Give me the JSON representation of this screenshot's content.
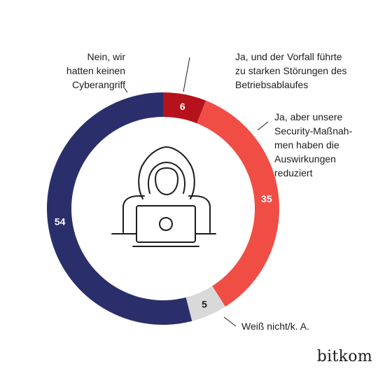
{
  "chart_data": {
    "type": "pie",
    "title": "",
    "slices": [
      {
        "label": "Ja, und der Vorfall führte zu starken Störungen des Betriebsablaufes",
        "value": 6,
        "value_label": "6",
        "color": "#b5121b"
      },
      {
        "label": "Ja, aber unsere Security-Maßnahmen haben die Auswirkungen reduziert",
        "value": 35,
        "value_label": "35",
        "color": "#f04e45"
      },
      {
        "label": "Weiß nicht/k. A.",
        "value": 5,
        "value_label": "5",
        "color": "#d9d9d9"
      },
      {
        "label": "Nein, wir hatten keinen Cyberangriff",
        "value": 54,
        "value_label": "54",
        "color": "#2a2f6b"
      }
    ],
    "style": "donut"
  },
  "labels": {
    "nein": [
      "Nein, wir",
      "hatten keinen",
      "Cyberangriff"
    ],
    "ja_stark": [
      "Ja, und der Vorfall führte",
      "zu starken Störungen des",
      "Betriebsablaufes"
    ],
    "ja_security": [
      "Ja, aber unsere",
      "Security-Maßnah-",
      "men haben die",
      "Auswirkungen",
      "reduziert"
    ],
    "weiss": [
      "Weiß nicht/k. A."
    ]
  },
  "brand": "bitkom",
  "icon": "hacker-laptop-icon"
}
